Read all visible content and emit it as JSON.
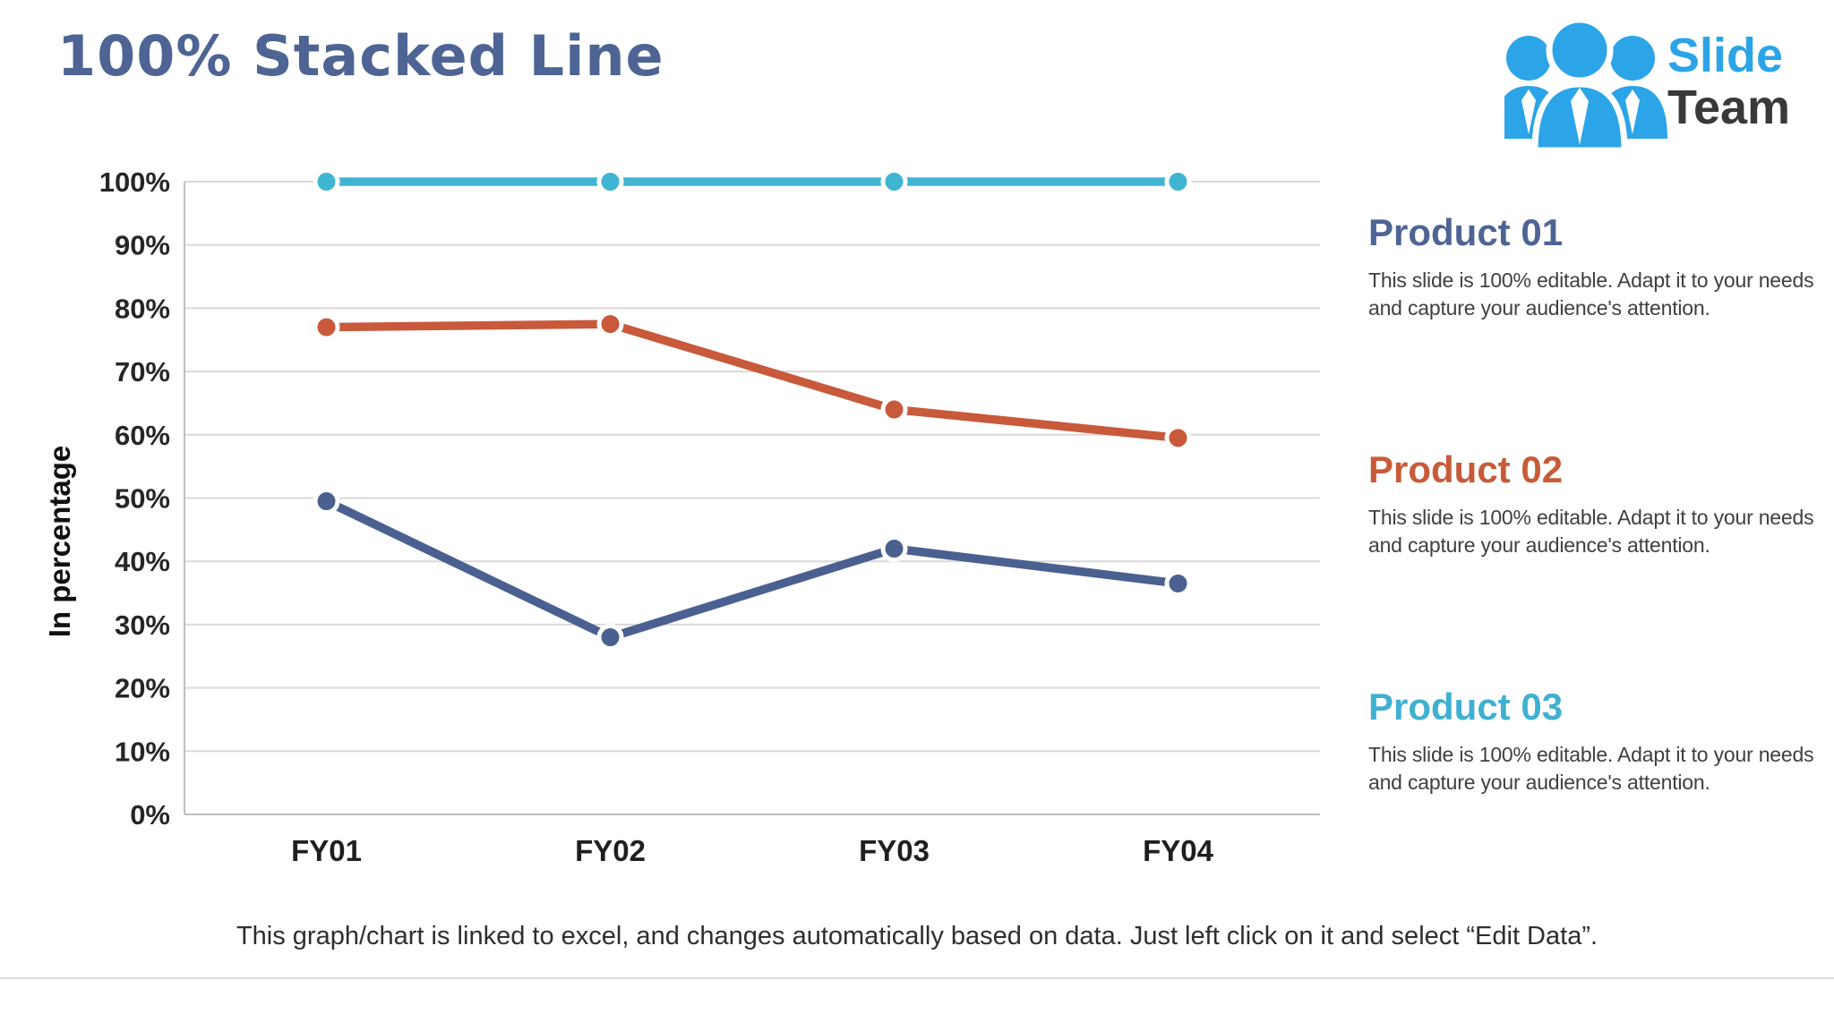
{
  "title": "100% Stacked Line",
  "logo": {
    "line1": "Slide",
    "line2": "Team"
  },
  "products": [
    {
      "name": "Product 01",
      "color": "#4D6494",
      "description": "This slide is 100% editable. Adapt it to your needs and capture your audience's attention."
    },
    {
      "name": "Product 02",
      "color": "#C75B39",
      "description": "This slide is 100% editable. Adapt it to your needs and capture your audience's attention."
    },
    {
      "name": "Product 03",
      "color": "#3FB0D1",
      "description": "This slide is 100% editable. Adapt it to your needs and capture your audience's attention."
    }
  ],
  "footer_note": "This graph/chart is linked to excel, and changes automatically based on data. Just left click on it and select “Edit Data”.",
  "colors": {
    "title": "#4D6494",
    "logo_blue": "#2BA4E8",
    "logo_dark": "#39393B",
    "grid": "#D9D9D9",
    "axis_line": "#BFBFBF"
  },
  "chart_data": {
    "type": "line",
    "title": "",
    "xlabel": "",
    "ylabel": "In percentage",
    "categories": [
      "FY01",
      "FY02",
      "FY03",
      "FY04"
    ],
    "series": [
      {
        "name": "Product 01",
        "color": "#4A6090",
        "values": [
          49.5,
          28,
          42,
          36.5
        ]
      },
      {
        "name": "Product 02",
        "color": "#C8593B",
        "values": [
          77,
          77.5,
          64,
          59.5
        ]
      },
      {
        "name": "Product 03",
        "color": "#3FB5D2",
        "values": [
          100,
          100,
          100,
          100
        ]
      }
    ],
    "ylim": [
      0,
      100
    ],
    "y_ticks": [
      "0%",
      "10%",
      "20%",
      "30%",
      "40%",
      "50%",
      "60%",
      "70%",
      "80%",
      "90%",
      "100%"
    ],
    "grid": true,
    "legend_position": "right-text-blocks"
  }
}
